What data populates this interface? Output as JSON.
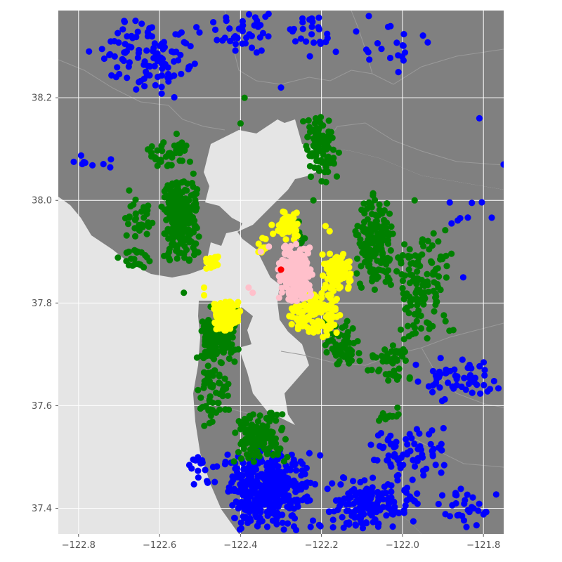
{
  "chart_data": {
    "type": "scatter",
    "title": "",
    "xlabel": "",
    "ylabel": "",
    "xlim": [
      -122.85,
      -121.75
    ],
    "ylim": [
      37.35,
      38.37
    ],
    "xticks": [
      -122.8,
      -122.6,
      -122.4,
      -122.2,
      -122.0,
      -121.8
    ],
    "xtick_labels": [
      "−122.8",
      "−122.6",
      "−122.4",
      "−122.2",
      "−122.0",
      "−121.8"
    ],
    "yticks": [
      37.4,
      37.6,
      37.8,
      38.0,
      38.2
    ],
    "ytick_labels": [
      "37.4",
      "37.6",
      "37.8",
      "38.0",
      "38.2"
    ],
    "grid": true,
    "legend": "none",
    "colors": {
      "water": "#e5e5e5",
      "land": "#808080",
      "border": "#9a9a9a",
      "grid": "#ffffff",
      "tick_label": "#555555"
    },
    "series": [
      {
        "color": "blue",
        "clusters": [
          {
            "x": [
              -122.78,
              -122.47
            ],
            "y": [
              38.18,
              38.37
            ],
            "n": 110
          },
          {
            "x": [
              -122.52,
              -122.3
            ],
            "y": [
              38.28,
              38.37
            ],
            "n": 40
          },
          {
            "x": [
              -122.3,
              -122.15
            ],
            "y": [
              38.27,
              38.37
            ],
            "n": 25
          },
          {
            "x": [
              -122.15,
              -121.9
            ],
            "y": [
              38.25,
              38.37
            ],
            "n": 20
          },
          {
            "x": [
              -122.85,
              -122.72
            ],
            "y": [
              38.04,
              38.09
            ],
            "n": 8
          },
          {
            "x": [
              -122.45,
              -122.2
            ],
            "y": [
              37.35,
              37.52
            ],
            "n": 400
          },
          {
            "x": [
              -122.2,
              -121.95
            ],
            "y": [
              37.35,
              37.47
            ],
            "n": 150
          },
          {
            "x": [
              -122.09,
              -121.87
            ],
            "y": [
              37.45,
              37.57
            ],
            "n": 70
          },
          {
            "x": [
              -121.98,
              -121.75
            ],
            "y": [
              37.6,
              37.7
            ],
            "n": 55
          },
          {
            "x": [
              -121.92,
              -121.75
            ],
            "y": [
              37.35,
              37.45
            ],
            "n": 30
          },
          {
            "x": [
              -122.55,
              -122.45
            ],
            "y": [
              37.43,
              37.52
            ],
            "n": 18
          },
          {
            "x": [
              -121.9,
              -121.75
            ],
            "y": [
              37.95,
              38.02
            ],
            "n": 8
          }
        ],
        "points": [
          {
            "x": -122.3,
            "y": 38.22
          },
          {
            "x": -122.01,
            "y": 38.25
          },
          {
            "x": -121.81,
            "y": 38.16
          },
          {
            "x": -121.75,
            "y": 38.07
          },
          {
            "x": -122.72,
            "y": 38.08
          },
          {
            "x": -121.85,
            "y": 37.85
          }
        ]
      },
      {
        "color": "green",
        "clusters": [
          {
            "x": [
              -122.6,
              -122.5
            ],
            "y": [
              37.87,
              38.06
            ],
            "n": 230
          },
          {
            "x": [
              -122.7,
              -122.6
            ],
            "y": [
              37.9,
              38.03
            ],
            "n": 30
          },
          {
            "x": [
              -122.72,
              -122.6
            ],
            "y": [
              37.86,
              37.92
            ],
            "n": 20
          },
          {
            "x": [
              -122.63,
              -122.52
            ],
            "y": [
              38.06,
              38.13
            ],
            "n": 40
          },
          {
            "x": [
              -122.25,
              -122.15
            ],
            "y": [
              38.03,
              38.17
            ],
            "n": 90
          },
          {
            "x": [
              -122.12,
              -122.02
            ],
            "y": [
              37.82,
              38.02
            ],
            "n": 160
          },
          {
            "x": [
              -122.02,
              -121.87
            ],
            "y": [
              37.7,
              37.95
            ],
            "n": 130
          },
          {
            "x": [
              -122.5,
              -122.4
            ],
            "y": [
              37.68,
              37.8
            ],
            "n": 150
          },
          {
            "x": [
              -122.52,
              -122.42
            ],
            "y": [
              37.55,
              37.7
            ],
            "n": 60
          },
          {
            "x": [
              -122.42,
              -122.28
            ],
            "y": [
              37.48,
              37.59
            ],
            "n": 140
          },
          {
            "x": [
              -122.2,
              -122.1
            ],
            "y": [
              37.67,
              37.77
            ],
            "n": 60
          },
          {
            "x": [
              -122.1,
              -121.98
            ],
            "y": [
              37.64,
              37.72
            ],
            "n": 45
          },
          {
            "x": [
              -122.07,
              -122.0
            ],
            "y": [
              37.56,
              37.6
            ],
            "n": 12
          },
          {
            "x": [
              -122.28,
              -122.24
            ],
            "y": [
              37.9,
              37.97
            ],
            "n": 10
          }
        ],
        "points": [
          {
            "x": -122.39,
            "y": 38.2
          },
          {
            "x": -122.4,
            "y": 38.15
          },
          {
            "x": -122.66,
            "y": 37.93
          },
          {
            "x": -122.54,
            "y": 37.82
          },
          {
            "x": -121.97,
            "y": 38.0
          },
          {
            "x": -122.22,
            "y": 38.0
          }
        ]
      },
      {
        "color": "yellow",
        "clusters": [
          {
            "x": [
              -122.47,
              -122.4
            ],
            "y": [
              37.74,
              37.81
            ],
            "n": 150
          },
          {
            "x": [
              -122.28,
              -122.15
            ],
            "y": [
              37.73,
              37.83
            ],
            "n": 130
          },
          {
            "x": [
              -122.2,
              -122.12
            ],
            "y": [
              37.82,
              37.9
            ],
            "n": 100
          },
          {
            "x": [
              -122.33,
              -122.25
            ],
            "y": [
              37.92,
              37.98
            ],
            "n": 55
          },
          {
            "x": [
              -122.36,
              -122.33
            ],
            "y": [
              37.89,
              37.93
            ],
            "n": 12
          },
          {
            "x": [
              -122.5,
              -122.44
            ],
            "y": [
              37.86,
              37.9
            ],
            "n": 25
          }
        ],
        "points": [
          {
            "x": -122.49,
            "y": 37.83
          },
          {
            "x": -122.49,
            "y": 37.815
          },
          {
            "x": -122.19,
            "y": 37.95
          },
          {
            "x": -122.18,
            "y": 37.94
          }
        ]
      },
      {
        "color": "pink",
        "clusters": [
          {
            "x": [
              -122.31,
              -122.22
            ],
            "y": [
              37.8,
              37.92
            ],
            "n": 240
          }
        ],
        "points": [
          {
            "x": -122.38,
            "y": 37.83
          },
          {
            "x": -122.37,
            "y": 37.82
          },
          {
            "x": -122.35,
            "y": 37.9
          },
          {
            "x": -122.33,
            "y": 37.91
          }
        ]
      },
      {
        "color": "red",
        "clusters": [],
        "points": [
          {
            "x": -122.3,
            "y": 37.865
          }
        ]
      }
    ]
  }
}
